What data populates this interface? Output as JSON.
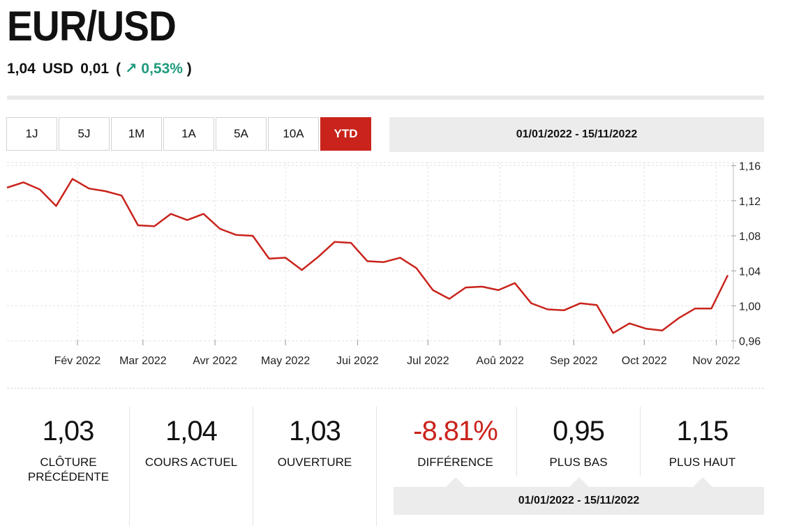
{
  "header": {
    "title": "EUR/USD",
    "price": "1,04",
    "currency": "USD",
    "change": "0,01",
    "paren_open": "(",
    "arrow": "↗",
    "change_pct": "0,53%",
    "paren_close": ")",
    "accent_color": "#1f9a7d"
  },
  "periods": [
    {
      "label": "1J"
    },
    {
      "label": "5J"
    },
    {
      "label": "1M"
    },
    {
      "label": "1A"
    },
    {
      "label": "5A"
    },
    {
      "label": "10A"
    },
    {
      "label": "YTD",
      "active": true
    }
  ],
  "range_label": "01/01/2022 - 15/11/2022",
  "chart_data": {
    "type": "line",
    "line_color": "#c9231b",
    "grid": true,
    "y_ticks": [
      "1,16",
      "1,12",
      "1,08",
      "1,04",
      "1,00",
      "0,96"
    ],
    "y_tick_values": [
      1.16,
      1.12,
      1.08,
      1.04,
      1.0,
      0.96
    ],
    "ylim": [
      0.955,
      1.17
    ],
    "x_tick_labels": [
      "Fév 2022",
      "Mar 2022",
      "Avr 2022",
      "May 2022",
      "Jui 2022",
      "Jul 2022",
      "Aoû 2022",
      "Sep 2022",
      "Oct 2022",
      "Nov 2022"
    ],
    "x_tick_weeks": [
      4.3,
      8.3,
      12.7,
      17.0,
      21.4,
      25.7,
      30.1,
      34.6,
      38.9,
      43.3
    ],
    "series": [
      {
        "values": [
          1.135,
          1.141,
          1.133,
          1.114,
          1.145,
          1.134,
          1.131,
          1.126,
          1.092,
          1.091,
          1.105,
          1.098,
          1.105,
          1.088,
          1.081,
          1.08,
          1.054,
          1.055,
          1.041,
          1.056,
          1.073,
          1.072,
          1.051,
          1.05,
          1.055,
          1.043,
          1.018,
          1.008,
          1.021,
          1.022,
          1.018,
          1.026,
          1.003,
          0.996,
          0.995,
          1.003,
          1.001,
          0.969,
          0.98,
          0.974,
          0.972,
          0.986,
          0.997,
          0.997,
          1.035
        ]
      }
    ]
  },
  "stats": [
    {
      "value": "1,03",
      "label": "CLÔTURE PRÉCÉDENTE"
    },
    {
      "value": "1,04",
      "label": "COURS ACTUEL"
    },
    {
      "value": "1,03",
      "label": "OUVERTURE"
    },
    {
      "value": "-8.81%",
      "label": "DIFFÉRENCE",
      "negative": true
    },
    {
      "value": "0,95",
      "label": "PLUS BAS"
    },
    {
      "value": "1,15",
      "label": "PLUS HAUT"
    }
  ],
  "stats_range_label": "01/01/2022 - 15/11/2022"
}
